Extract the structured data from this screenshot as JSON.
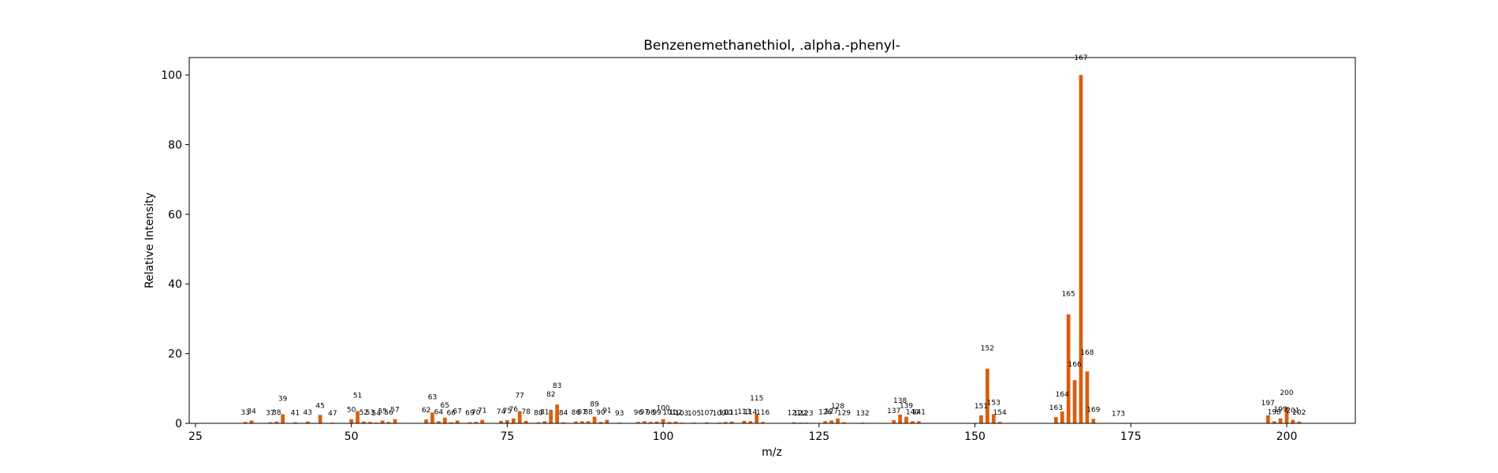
{
  "chart_data": {
    "type": "bar",
    "title": "Benzenemethanethiol, .alpha.-phenyl-",
    "xlabel": "m/z",
    "ylabel": "Relative Intensity",
    "xlim": [
      24,
      211
    ],
    "ylim": [
      0,
      105
    ],
    "xticks": [
      25,
      50,
      75,
      100,
      125,
      150,
      175,
      200
    ],
    "yticks": [
      0,
      20,
      40,
      60,
      80,
      100
    ],
    "bar_color": "#d95f0e",
    "grid": false,
    "peaks": [
      {
        "mz": 33,
        "intensity": 0.4
      },
      {
        "mz": 34,
        "intensity": 0.8
      },
      {
        "mz": 37,
        "intensity": 0.3
      },
      {
        "mz": 38,
        "intensity": 0.5
      },
      {
        "mz": 39,
        "intensity": 2.6
      },
      {
        "mz": 41,
        "intensity": 0.3
      },
      {
        "mz": 43,
        "intensity": 0.5
      },
      {
        "mz": 45,
        "intensity": 2.4
      },
      {
        "mz": 47,
        "intensity": 0.2
      },
      {
        "mz": 50,
        "intensity": 1.2
      },
      {
        "mz": 51,
        "intensity": 3.5
      },
      {
        "mz": 52,
        "intensity": 0.5
      },
      {
        "mz": 53,
        "intensity": 0.4
      },
      {
        "mz": 54,
        "intensity": 0.2
      },
      {
        "mz": 55,
        "intensity": 0.8
      },
      {
        "mz": 56,
        "intensity": 0.4
      },
      {
        "mz": 57,
        "intensity": 1.2
      },
      {
        "mz": 62,
        "intensity": 1.1
      },
      {
        "mz": 63,
        "intensity": 3.1
      },
      {
        "mz": 64,
        "intensity": 0.6
      },
      {
        "mz": 65,
        "intensity": 1.6
      },
      {
        "mz": 66,
        "intensity": 0.3
      },
      {
        "mz": 67,
        "intensity": 0.8
      },
      {
        "mz": 69,
        "intensity": 0.3
      },
      {
        "mz": 70,
        "intensity": 0.4
      },
      {
        "mz": 71,
        "intensity": 1.0
      },
      {
        "mz": 74,
        "intensity": 0.7
      },
      {
        "mz": 75,
        "intensity": 0.9
      },
      {
        "mz": 76,
        "intensity": 1.4
      },
      {
        "mz": 77,
        "intensity": 3.5
      },
      {
        "mz": 78,
        "intensity": 0.7
      },
      {
        "mz": 80,
        "intensity": 0.3
      },
      {
        "mz": 81,
        "intensity": 0.6
      },
      {
        "mz": 82,
        "intensity": 3.9
      },
      {
        "mz": 83,
        "intensity": 5.4
      },
      {
        "mz": 84,
        "intensity": 0.3
      },
      {
        "mz": 86,
        "intensity": 0.5
      },
      {
        "mz": 87,
        "intensity": 0.6
      },
      {
        "mz": 88,
        "intensity": 0.6
      },
      {
        "mz": 89,
        "intensity": 1.9
      },
      {
        "mz": 90,
        "intensity": 0.4
      },
      {
        "mz": 91,
        "intensity": 1.0
      },
      {
        "mz": 93,
        "intensity": 0.2
      },
      {
        "mz": 96,
        "intensity": 0.4
      },
      {
        "mz": 97,
        "intensity": 0.6
      },
      {
        "mz": 98,
        "intensity": 0.4
      },
      {
        "mz": 99,
        "intensity": 0.5
      },
      {
        "mz": 100,
        "intensity": 1.2
      },
      {
        "mz": 101,
        "intensity": 0.4
      },
      {
        "mz": 102,
        "intensity": 0.5
      },
      {
        "mz": 103,
        "intensity": 0.2
      },
      {
        "mz": 105,
        "intensity": 0.2
      },
      {
        "mz": 107,
        "intensity": 0.3
      },
      {
        "mz": 109,
        "intensity": 0.2
      },
      {
        "mz": 110,
        "intensity": 0.4
      },
      {
        "mz": 111,
        "intensity": 0.5
      },
      {
        "mz": 113,
        "intensity": 0.7
      },
      {
        "mz": 114,
        "intensity": 0.6
      },
      {
        "mz": 115,
        "intensity": 2.7
      },
      {
        "mz": 116,
        "intensity": 0.4
      },
      {
        "mz": 121,
        "intensity": 0.3
      },
      {
        "mz": 122,
        "intensity": 0.2
      },
      {
        "mz": 123,
        "intensity": 0.2
      },
      {
        "mz": 126,
        "intensity": 0.6
      },
      {
        "mz": 127,
        "intensity": 0.8
      },
      {
        "mz": 128,
        "intensity": 1.4
      },
      {
        "mz": 129,
        "intensity": 0.3
      },
      {
        "mz": 132,
        "intensity": 0.2
      },
      {
        "mz": 137,
        "intensity": 0.9
      },
      {
        "mz": 138,
        "intensity": 2.5
      },
      {
        "mz": 139,
        "intensity": 1.9
      },
      {
        "mz": 140,
        "intensity": 0.6
      },
      {
        "mz": 141,
        "intensity": 0.6
      },
      {
        "mz": 151,
        "intensity": 2.3
      },
      {
        "mz": 152,
        "intensity": 15.7
      },
      {
        "mz": 153,
        "intensity": 2.6
      },
      {
        "mz": 154,
        "intensity": 0.4
      },
      {
        "mz": 163,
        "intensity": 1.8
      },
      {
        "mz": 164,
        "intensity": 3.4
      },
      {
        "mz": 165,
        "intensity": 31.3
      },
      {
        "mz": 166,
        "intensity": 12.4
      },
      {
        "mz": 167,
        "intensity": 100
      },
      {
        "mz": 168,
        "intensity": 14.9
      },
      {
        "mz": 169,
        "intensity": 1.3
      },
      {
        "mz": 173,
        "intensity": 0.1
      },
      {
        "mz": 197,
        "intensity": 2.3
      },
      {
        "mz": 198,
        "intensity": 0.6
      },
      {
        "mz": 199,
        "intensity": 1.4
      },
      {
        "mz": 200,
        "intensity": 4.7
      },
      {
        "mz": 201,
        "intensity": 1.0
      },
      {
        "mz": 202,
        "intensity": 0.5
      }
    ]
  }
}
